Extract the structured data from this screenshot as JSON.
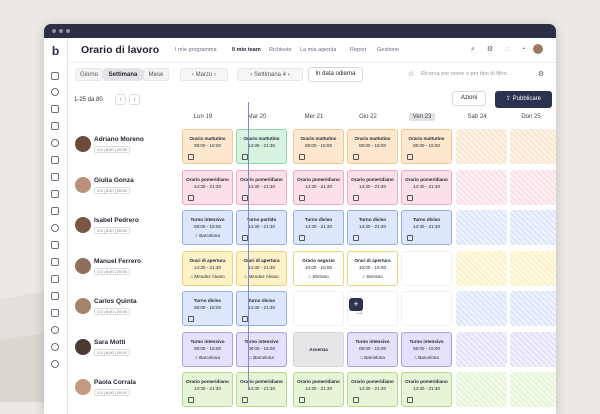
{
  "app": {
    "title": "Orario di lavoro"
  },
  "nav": [
    "I mie programma",
    "Il mio team",
    "Richieste",
    "La mia agenda",
    "Report",
    "Gestione"
  ],
  "nav_active": 1,
  "toolbar": {
    "views": [
      "Giorno",
      "Settimana",
      "Mese"
    ],
    "view_selected": 1,
    "month": "Marzo",
    "week": "Settimana 4",
    "today": "In data odierna",
    "search_placeholder": "Ricerca per nome o per tipo di filtro..."
  },
  "pagination": {
    "range": "1-25",
    "sep": "da",
    "total": "80"
  },
  "actions": {
    "azioni": "Azioni",
    "pubblicare": "Pubblicare"
  },
  "days": [
    "Lun 19",
    "Mar 20",
    "Mer 21",
    "Gio 22",
    "Ven 23",
    "Sab 24",
    "Don 25"
  ],
  "today_index": 4,
  "employees": [
    {
      "name": "Adriano Moreno",
      "meta": "1,5 | 8:00 | 20:00",
      "avatar": "#6b4a3a"
    },
    {
      "name": "Giulia Gonza",
      "meta": "1,5 | 8:00 | 20:00",
      "avatar": "#b99079"
    },
    {
      "name": "Isabel Pedrero",
      "meta": "1,5 | 8:00 | 20:00",
      "avatar": "#7a5642"
    },
    {
      "name": "Manuel Ferrero",
      "meta": "1,5 | 8:00 | 20:00",
      "avatar": "#8f6e5d"
    },
    {
      "name": "Carlos Quinta",
      "meta": "1,5 | 8:00 | 20:00",
      "avatar": "#a6836f"
    },
    {
      "name": "Sara Motti",
      "meta": "1,5 | 8:00 | 20:00",
      "avatar": "#4a3a33"
    },
    {
      "name": "Paola Corrala",
      "meta": "1,5 | 8:00 | 20:00",
      "avatar": "#c49b7e"
    }
  ],
  "shifts": [
    [
      {
        "t": "Orario mattutino",
        "h": "08:00 - 15:00",
        "c": "#fde8cf",
        "b": "#f3c893"
      },
      {
        "t": "Orario mattutino",
        "h": "14:30 - 21:30",
        "c": "#d7f2df",
        "b": "#8fd6a7"
      },
      {
        "t": "Orario mattutino",
        "h": "08:00 - 15:00",
        "c": "#fde8cf",
        "b": "#f3c893"
      },
      {
        "t": "Orario mattutino",
        "h": "08:00 - 15:00",
        "c": "#fde8cf",
        "b": "#f3c893"
      },
      {
        "t": "Orario mattutino",
        "h": "08:00 - 15:00",
        "c": "#fde8cf",
        "b": "#f3c893"
      }
    ],
    [
      {
        "t": "Orario pomeridiano",
        "h": "14:30 - 21:30",
        "c": "#fbe0e8",
        "b": "#f0a9bf"
      },
      {
        "t": "Orario pomeridiano",
        "h": "14:30 - 21:30",
        "c": "#fbe0e8",
        "b": "#f0a9bf"
      },
      {
        "t": "Orario pomeridiano",
        "h": "14:30 - 21:30",
        "c": "#fbe0e8",
        "b": "#f0a9bf"
      },
      {
        "t": "Orario pomeridiano",
        "h": "14:30 - 21:30",
        "c": "#fbe0e8",
        "b": "#f0a9bf"
      },
      {
        "t": "Orario pomeridiano",
        "h": "14:30 - 21:30",
        "c": "#fbe0e8",
        "b": "#f0a9bf"
      }
    ],
    [
      {
        "t": "Turno intensivo",
        "h": "08:00 - 15:00",
        "l": "Barcelona",
        "c": "#dde6fb",
        "b": "#93aee9"
      },
      {
        "t": "Turno partido",
        "h": "14:30 - 21:30",
        "c": "#dde6fb",
        "b": "#93aee9"
      },
      {
        "t": "Turno diviso",
        "h": "14:30 - 21:30",
        "c": "#dde6fb",
        "b": "#93aee9"
      },
      {
        "t": "Turno diviso",
        "h": "14:30 - 21:30",
        "c": "#dde6fb",
        "b": "#93aee9"
      },
      {
        "t": "Turno diviso",
        "h": "14:30 - 21:30",
        "c": "#dde6fb",
        "b": "#93aee9"
      }
    ],
    [
      {
        "t": "Orari di apertura",
        "h": "14:30 - 21:30",
        "l": "Mendez Alvaro",
        "c": "#fdf1c8",
        "b": "#edd27a"
      },
      {
        "t": "Orari di apertura",
        "h": "14:30 - 21:30",
        "l": "Mendez Alvaro",
        "c": "#fdf1c8",
        "b": "#edd27a"
      },
      {
        "t": "Orario negozio",
        "h": "10:00 - 15:00",
        "l": "Sèrrano",
        "c": "#ffffff",
        "b": "#edd27a"
      },
      {
        "t": "Orari di apertura",
        "h": "10:00 - 15:00",
        "l": "Serrano",
        "c": "#ffffff",
        "b": "#edd27a"
      },
      null
    ],
    [
      {
        "t": "Turno diviso",
        "h": "08:00 - 15:00",
        "c": "#dde6fb",
        "b": "#93aee9"
      },
      {
        "t": "Turno diviso",
        "h": "14:30 - 21:30",
        "c": "#dde6fb",
        "b": "#93aee9"
      },
      null,
      null,
      null
    ],
    [
      {
        "t": "Turno intensivo",
        "h": "08:00 - 15:00",
        "l": "Barcelona",
        "c": "#e6e0fa",
        "b": "#ad9ce6"
      },
      {
        "t": "Turno intensivo",
        "h": "08:00 - 15:00",
        "l": "Barcelona",
        "c": "#e6e0fa",
        "b": "#ad9ce6"
      },
      {
        "t": "Assenza",
        "c": "#e7e7ea",
        "b": "#d5d5da"
      },
      {
        "t": "Turno intensivo",
        "h": "08:00 - 15:00",
        "l": "Barcelona",
        "c": "#e6e0fa",
        "b": "#ad9ce6"
      },
      {
        "t": "Turno intensivo",
        "h": "08:00 - 15:00",
        "l": "Barcelona",
        "c": "#e6e0fa",
        "b": "#ad9ce6"
      }
    ],
    [
      {
        "t": "Orario pomeridiano",
        "h": "14:30 - 21:30",
        "c": "#e6f5d6",
        "b": "#b5dc8d"
      },
      {
        "t": "Orario pomeridiano",
        "h": "14:30 - 21:30",
        "c": "#e6f5d6",
        "b": "#b5dc8d"
      },
      {
        "t": "Orario pomeridiano",
        "h": "14:30 - 21:30",
        "c": "#e6f5d6",
        "b": "#b5dc8d"
      },
      {
        "t": "Orario pomeridiano",
        "h": "14:30 - 21:30",
        "c": "#e6f5d6",
        "b": "#b5dc8d"
      },
      {
        "t": "Orario pomeridiano",
        "h": "14:30 - 21:30",
        "c": "#e6f5d6",
        "b": "#b5dc8d"
      }
    ]
  ],
  "weekend_colors": [
    "#fbe6cf",
    "#fbe0e8",
    "#dde6fb",
    "#fdf1c8",
    "#dde6fb",
    "#e6e0fa",
    "#e6f5d6"
  ],
  "colors": {
    "brand_dark": "#2b3350",
    "titlebar": "#2b2e45",
    "now_line": "#7b8ad6"
  }
}
